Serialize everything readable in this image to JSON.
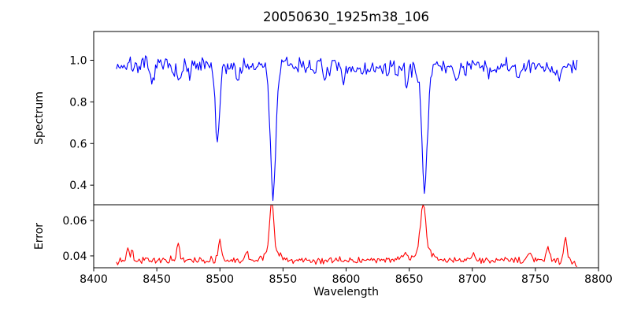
{
  "title": "20050630_1925m38_106",
  "xlabel": "Wavelength",
  "chart_data": {
    "type": "line",
    "title": "20050630_1925m38_106",
    "xlabel": "Wavelength",
    "grid": false,
    "legend": "none",
    "xlim": [
      8400,
      8800
    ],
    "xticks": [
      8400,
      8450,
      8500,
      8550,
      8600,
      8650,
      8700,
      8750,
      8800
    ],
    "x_range": {
      "start": 8418,
      "stop": 8783,
      "step": 1
    },
    "panels": [
      {
        "name": "spectrum",
        "ylabel": "Spectrum",
        "color": "#0000ff",
        "ylim": [
          0.306,
          1.138
        ],
        "yticks": [
          0.4,
          0.6,
          0.8,
          1.0
        ],
        "ytick_labels": [
          "0.4",
          "0.6",
          "0.8",
          "1.0"
        ],
        "baseline": 0.968,
        "noise_sigma": 0.02,
        "noise_seed": 7,
        "wiggle": [
          {
            "amp": 0.008,
            "period": 55,
            "phase": 0
          },
          {
            "amp": 0.006,
            "period": 23,
            "phase": 1.3
          }
        ],
        "absorption_lines": [
          {
            "center": 8498.0,
            "depth": 0.4,
            "sigma": 1.6
          },
          {
            "center": 8542.1,
            "depth": 0.62,
            "sigma": 2.2
          },
          {
            "center": 8662.1,
            "depth": 0.56,
            "sigma": 2.2
          },
          {
            "center": 8446.0,
            "depth": 0.1,
            "sigma": 1.3
          },
          {
            "center": 8468.0,
            "depth": 0.09,
            "sigma": 1.2
          },
          {
            "center": 8476.0,
            "depth": 0.06,
            "sigma": 1.0
          },
          {
            "center": 8514.0,
            "depth": 0.07,
            "sigma": 1.2
          },
          {
            "center": 8527.0,
            "depth": 0.05,
            "sigma": 1.0
          },
          {
            "center": 8583.0,
            "depth": 0.06,
            "sigma": 1.2
          },
          {
            "center": 8598.0,
            "depth": 0.08,
            "sigma": 1.3
          },
          {
            "center": 8648.0,
            "depth": 0.06,
            "sigma": 1.2
          },
          {
            "center": 8688.0,
            "depth": 0.07,
            "sigma": 1.2
          },
          {
            "center": 8713.0,
            "depth": 0.05,
            "sigma": 1.2
          },
          {
            "center": 8736.0,
            "depth": 0.05,
            "sigma": 1.2
          },
          {
            "center": 8768.0,
            "depth": 0.05,
            "sigma": 1.2
          }
        ]
      },
      {
        "name": "error",
        "ylabel": "Error",
        "color": "#ff0000",
        "ylim": [
          0.0333,
          0.0689
        ],
        "yticks": [
          0.04,
          0.06
        ],
        "ytick_labels": [
          "0.04",
          "0.06"
        ],
        "baseline": 0.0375,
        "noise_sigma": 0.0009,
        "noise_seed": 13,
        "wiggle": [],
        "spikes": [
          {
            "center": 8427.0,
            "height": 0.009,
            "sigma": 0.9
          },
          {
            "center": 8430.5,
            "height": 0.008,
            "sigma": 0.8
          },
          {
            "center": 8467.0,
            "height": 0.01,
            "sigma": 1.0
          },
          {
            "center": 8500.0,
            "height": 0.011,
            "sigma": 1.2
          },
          {
            "center": 8521.0,
            "height": 0.005,
            "sigma": 1.0
          },
          {
            "center": 8541.0,
            "height": 0.029,
            "sigma": 1.5
          },
          {
            "center": 8541.0,
            "height": 0.006,
            "sigma": 5.0
          },
          {
            "center": 8646.0,
            "height": 0.004,
            "sigma": 1.5
          },
          {
            "center": 8661.0,
            "height": 0.026,
            "sigma": 2.0
          },
          {
            "center": 8661.0,
            "height": 0.006,
            "sigma": 6.0
          },
          {
            "center": 8700.0,
            "height": 0.003,
            "sigma": 2.0
          },
          {
            "center": 8745.0,
            "height": 0.004,
            "sigma": 2.0
          },
          {
            "center": 8760.0,
            "height": 0.009,
            "sigma": 1.2
          },
          {
            "center": 8774.0,
            "height": 0.013,
            "sigma": 1.1
          }
        ],
        "end_drop": {
          "start": 8777,
          "slope": 0.0004
        }
      }
    ]
  }
}
